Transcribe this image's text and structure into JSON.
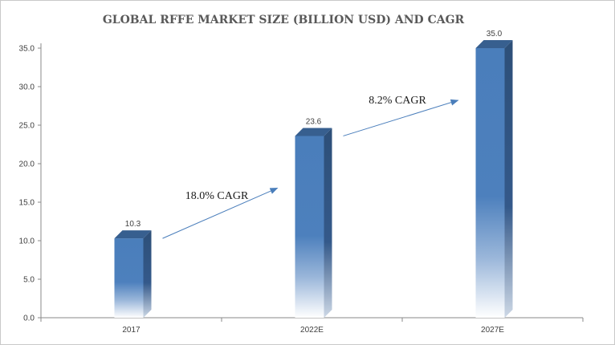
{
  "chart_data": {
    "type": "bar",
    "title": "GLOBAL RFFE MARKET SIZE (BILLION USD) AND CAGR",
    "xlabel": "",
    "ylabel": "",
    "categories": [
      "2017",
      "2022E",
      "2027E"
    ],
    "values": [
      10.3,
      23.6,
      35.0
    ],
    "data_labels": [
      "10.3",
      "23.6",
      "35.0"
    ],
    "ylim": [
      0,
      35
    ],
    "yticks": [
      "0.0",
      "5.0",
      "10.0",
      "15.0",
      "20.0",
      "25.0",
      "30.0",
      "35.0"
    ],
    "grid": false,
    "legend": "none",
    "bar_color": "#4a7ebb",
    "bar_top_color": "#375f8f",
    "bar_side_color": "#2d4f78",
    "arrow_color": "#4a7ebb",
    "annotations": [
      {
        "text": "18.0% CAGR",
        "from": 0,
        "to": 1
      },
      {
        "text": "8.2% CAGR",
        "from": 1,
        "to": 2
      }
    ]
  }
}
